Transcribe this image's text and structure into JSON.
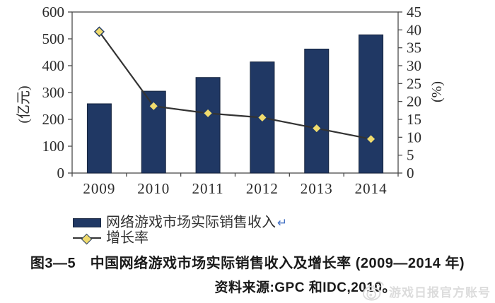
{
  "figure": {
    "caption": "图3—5　中国网络游戏市场实际销售收入及增长率 (2009—2014 年)",
    "source": "资料来源:GPC 和IDC,2010。"
  },
  "legend": {
    "items": [
      {
        "label": "网络游戏市场实际销售收入",
        "suffix": "↵",
        "swatch": "bar"
      },
      {
        "label": "增长率",
        "swatch": "line-diamond"
      }
    ]
  },
  "watermark": {
    "icon": "weibo-icon",
    "text": "游戏日报官方账号"
  },
  "chart_data": {
    "type": "bar",
    "combo": "bar+line",
    "title": "中国网络游戏市场实际销售收入及增长率 (2009—2014 年)",
    "categories": [
      "2009",
      "2010",
      "2011",
      "2012",
      "2013",
      "2014"
    ],
    "series": [
      {
        "name": "网络游戏市场实际销售收入",
        "type": "bar",
        "axis": "left",
        "unit": "亿元",
        "values": [
          258,
          305,
          356,
          414,
          462,
          515
        ]
      },
      {
        "name": "增长率",
        "type": "line",
        "axis": "right",
        "unit": "%",
        "marker": "diamond",
        "values": [
          39.5,
          18.7,
          16.7,
          15.5,
          12.5,
          9.5
        ]
      }
    ],
    "left_axis": {
      "label": "(亿元)",
      "min": 0,
      "max": 600,
      "step": 100
    },
    "right_axis": {
      "label": "(%)",
      "min": 0,
      "max": 45,
      "step": 5
    },
    "grid": false,
    "legend_position": "bottom-left"
  },
  "colors": {
    "bar_fill": "#203864",
    "bar_stroke": "#16243e",
    "line": "#333333",
    "marker_fill": "#f0db6d",
    "marker_stroke": "#1f3864",
    "axis": "#4a4a4a",
    "text": "#2b2b2b",
    "return_mark": "#4472c4",
    "watermark": "#dcdcdc"
  }
}
